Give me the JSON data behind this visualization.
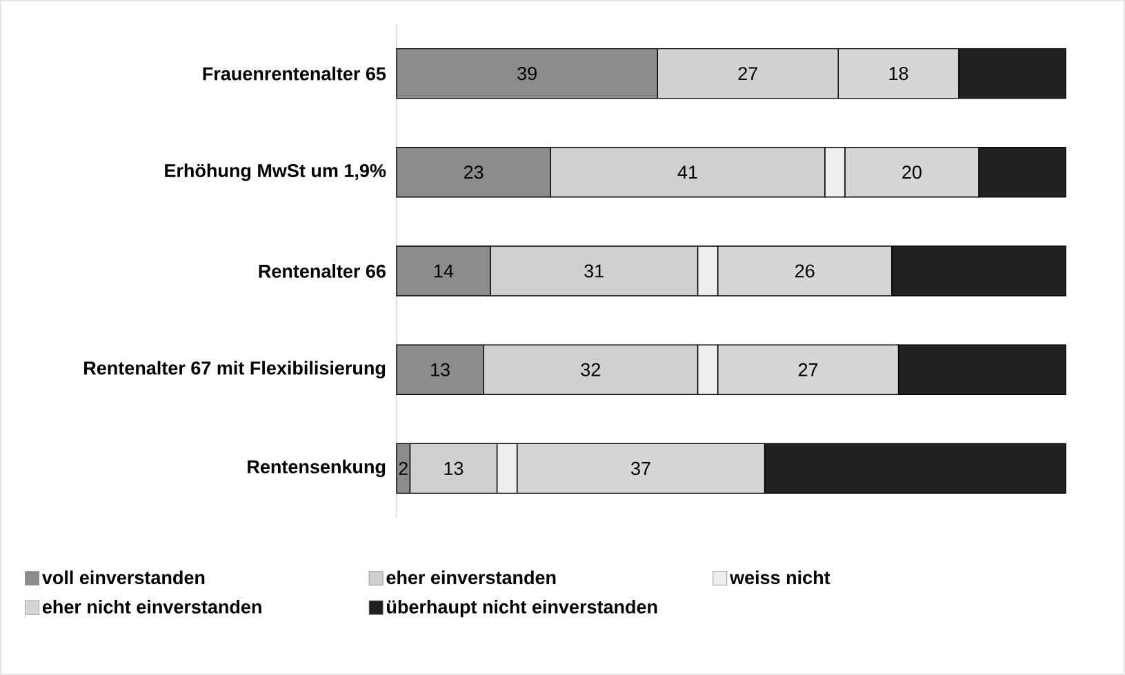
{
  "chart_data": {
    "type": "bar",
    "orientation": "horizontal",
    "stacked": true,
    "categories": [
      "Frauenrentenalter 65",
      "Erhöhung MwSt um 1,9%",
      "Rentenalter 66",
      "Rentenalter 67 mit Flexibilisierung",
      "Rentensenkung"
    ],
    "series": [
      {
        "name": "voll einverstanden",
        "color": "#8c8c8c",
        "values": [
          39,
          23,
          14,
          13,
          2
        ],
        "value_labels": [
          "39",
          "23",
          "14",
          "13",
          "2"
        ]
      },
      {
        "name": "eher einverstanden",
        "color": "#d0d0d0",
        "values": [
          27,
          41,
          31,
          32,
          13
        ],
        "value_labels": [
          "27",
          "41",
          "31",
          "32",
          "13"
        ]
      },
      {
        "name": "weiss nicht",
        "color": "#eeeeee",
        "values": [
          0,
          3,
          3,
          3,
          3
        ],
        "value_labels": [
          null,
          null,
          null,
          null,
          null
        ]
      },
      {
        "name": "eher nicht einverstanden",
        "color": "#d6d6d6",
        "values": [
          18,
          20,
          26,
          27,
          37
        ],
        "value_labels": [
          "18",
          "20",
          "26",
          "27",
          "37"
        ]
      },
      {
        "name": "überhaupt nicht einverstanden",
        "color": "#222222",
        "values": [
          16,
          13,
          26,
          25,
          45
        ],
        "value_labels": [
          null,
          null,
          null,
          null,
          null
        ]
      }
    ],
    "tick_labels": "y",
    "legend": "bottom"
  }
}
